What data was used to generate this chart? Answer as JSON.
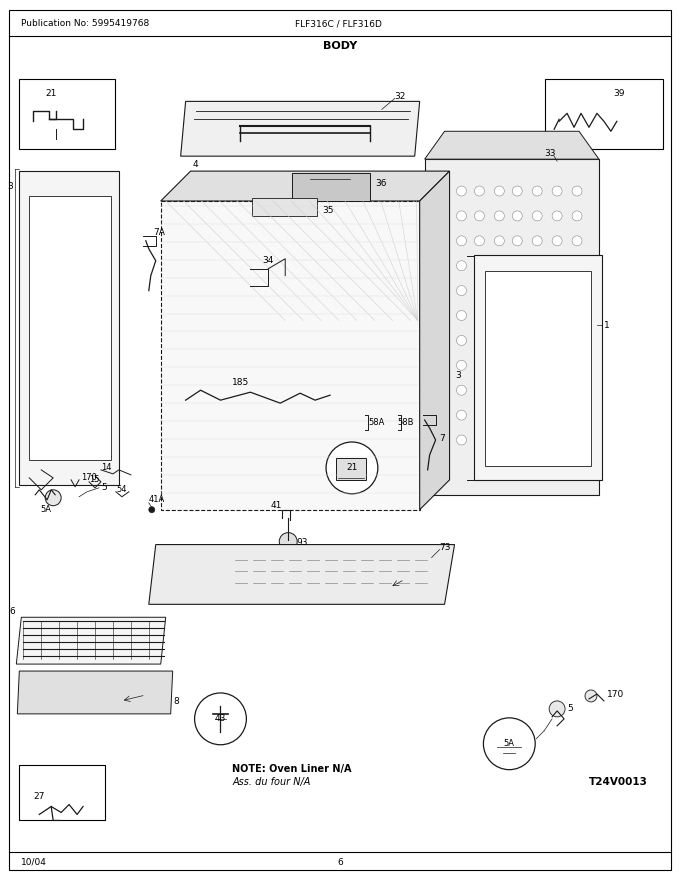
{
  "page_width": 6.8,
  "page_height": 8.8,
  "dpi": 100,
  "background_color": "#ffffff",
  "header_pub": "Publication No: 5995419768",
  "header_model": "FLF316C / FLF316D",
  "header_section": "BODY",
  "footer_date": "10/04",
  "footer_page": "6",
  "diagram_ref": "T24V0013",
  "note_line1": "NOTE: Oven Liner N/A",
  "note_line2": "Ass. du four N/A"
}
